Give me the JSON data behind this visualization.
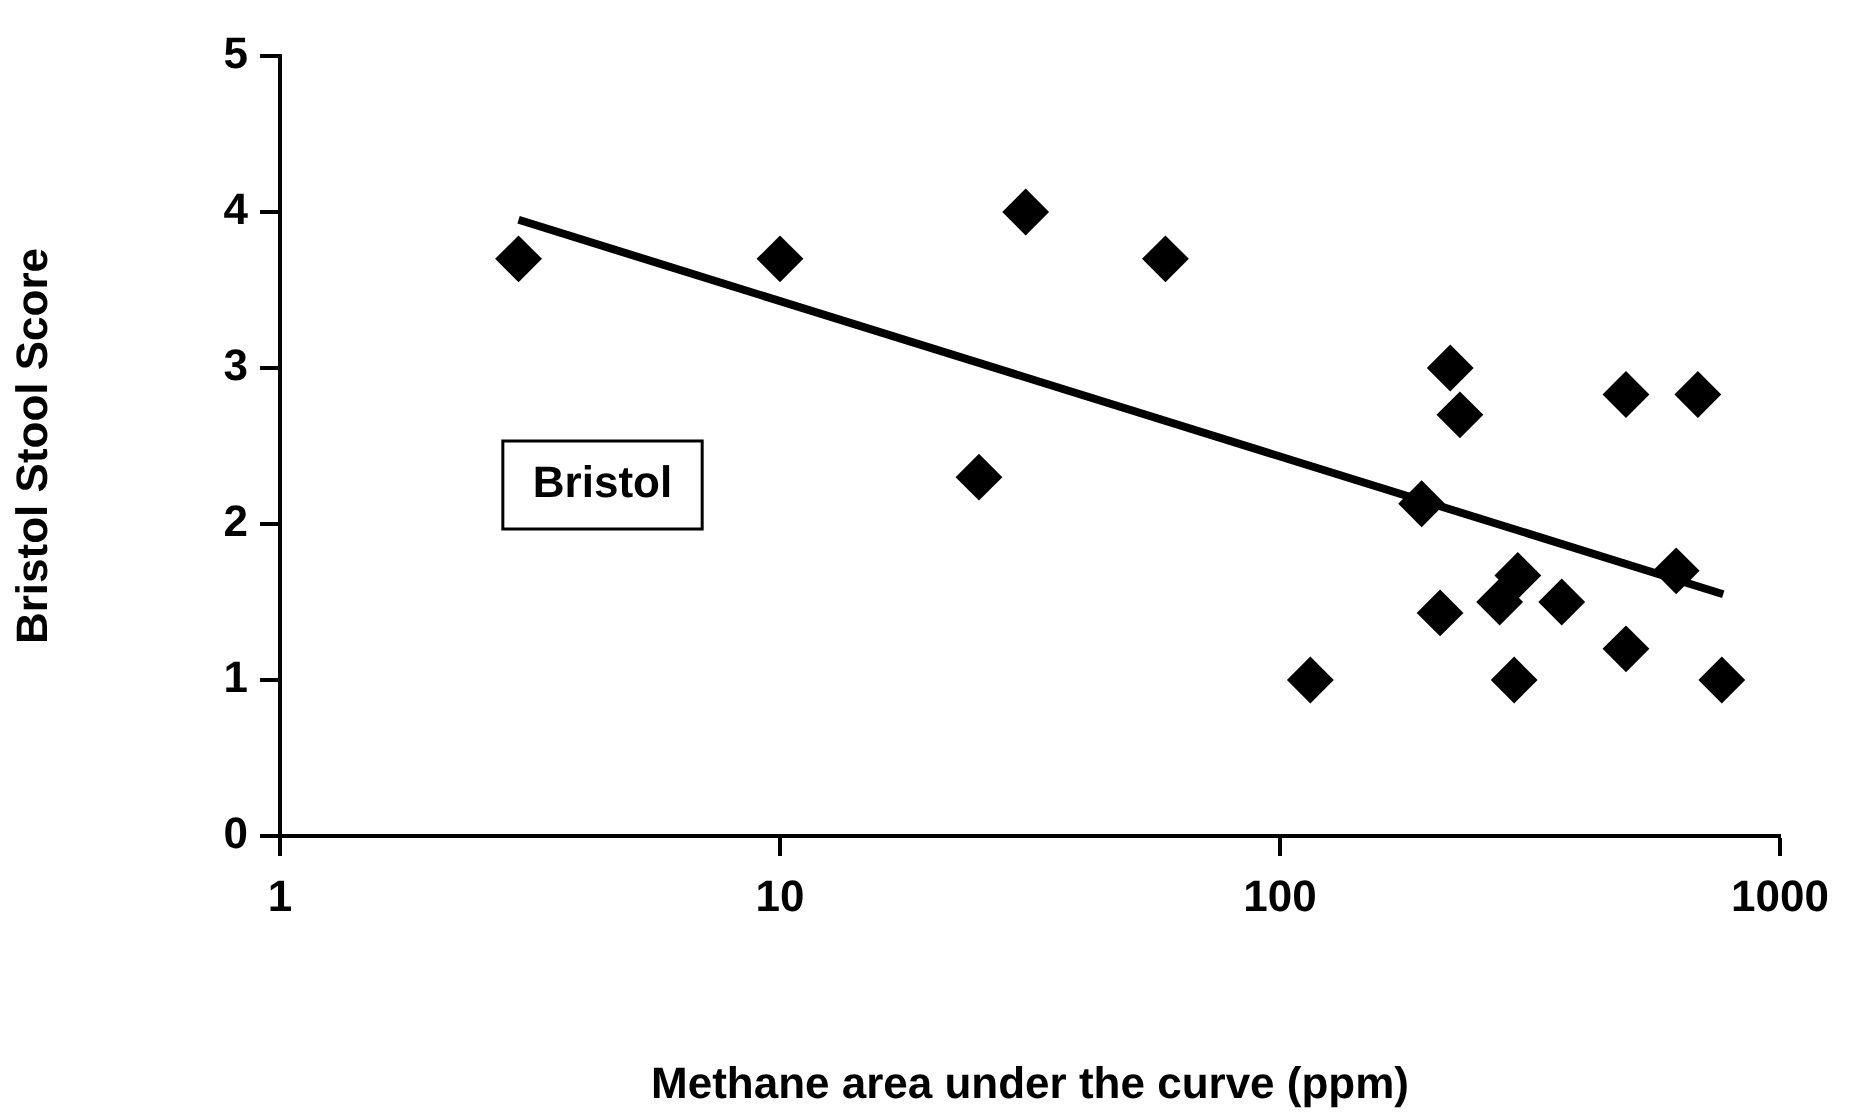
{
  "chart_data": {
    "type": "scatter",
    "xlabel": "Methane area under the curve (ppm)",
    "ylabel": "Bristol Stool Score",
    "annotations": [
      "Bristol"
    ],
    "log": "x",
    "xlim": [
      1,
      1000
    ],
    "xticks": [
      1,
      10,
      100,
      1000
    ],
    "ylim": [
      0,
      5
    ],
    "yticks": [
      0,
      1,
      2,
      3,
      4,
      5
    ],
    "grid": false,
    "legend": false,
    "series": [
      {
        "marker": "diamond",
        "color": "#000000",
        "x": [
          3,
          10,
          31,
          59,
          25,
          115,
          192,
          219,
          229,
          209,
          275,
          299,
          294,
          366,
          492,
          492,
          620,
          685,
          765
        ],
        "values": [
          3.7,
          3.7,
          4.0,
          3.7,
          2.3,
          1.0,
          2.13,
          3.0,
          2.7,
          1.43,
          1.5,
          1.67,
          1.0,
          1.5,
          2.83,
          1.2,
          1.7,
          2.83,
          1.0
        ]
      },
      {
        "type": "line",
        "color": "#000000",
        "x": [
          3,
          770
        ],
        "values": [
          3.95,
          1.55
        ]
      }
    ]
  }
}
